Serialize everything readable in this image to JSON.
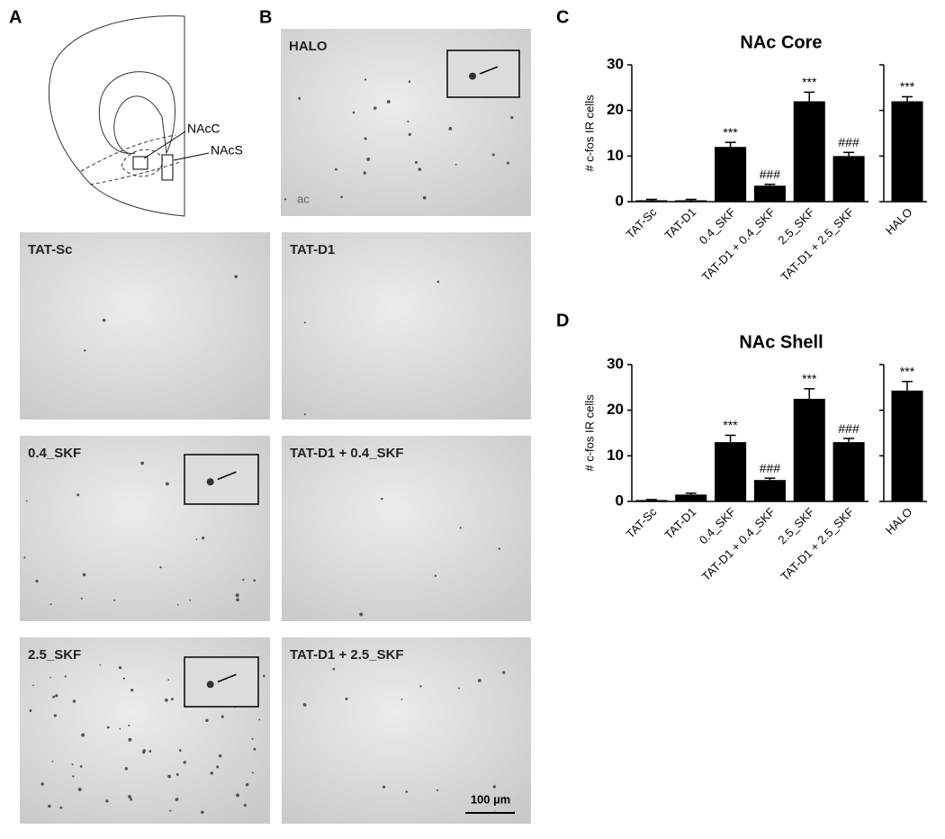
{
  "figure": {
    "letters": [
      "A",
      "B",
      "C",
      "D"
    ],
    "atlas_labels": [
      "NAcC",
      "NAcS"
    ],
    "ac_label": "ac",
    "micrographs": [
      "HALO",
      "TAT-Sc",
      "TAT-D1",
      "0.4_SKF",
      "TAT-D1 + 0.4_SKF",
      "2.5_SKF",
      "TAT-D1 + 2.5_SKF"
    ],
    "scale_bar": "100 µm"
  },
  "chart_data": [
    {
      "type": "bar",
      "title": "NAc Core",
      "y_label": "# c-fos IR cells",
      "categories": [
        "TAT-Sc",
        "TAT-D1",
        "0.4_SKF",
        "TAT-D1 + 0.4_SKF",
        "2.5_SKF",
        "TAT-D1 + 2.5_SKF",
        "HALO"
      ],
      "values": [
        0.3,
        0.3,
        12,
        3.5,
        22,
        10,
        22
      ],
      "errors": [
        0.2,
        0.2,
        1,
        0.3,
        2,
        0.8,
        1
      ],
      "markers": [
        null,
        null,
        "***",
        "###",
        "***",
        "###",
        "***"
      ],
      "color": "#000000",
      "ylim": [
        0,
        30
      ],
      "yticks": [
        0,
        10,
        20,
        30
      ]
    },
    {
      "type": "bar",
      "title": "NAc Shell",
      "y_label": "# c-fos IR cells",
      "categories": [
        "TAT-Sc",
        "TAT-D1",
        "0.4_SKF",
        "TAT-D1 + 0.4_SKF",
        "2.5_SKF",
        "TAT-D1 + 2.5_SKF",
        "HALO"
      ],
      "values": [
        0.3,
        1.5,
        13,
        4.7,
        22.5,
        13,
        24.3
      ],
      "errors": [
        0.1,
        0.3,
        1.5,
        0.4,
        2.2,
        0.8,
        2
      ],
      "markers": [
        null,
        null,
        "***",
        "###",
        "***",
        "###",
        "***"
      ],
      "color": "#000000",
      "ylim": [
        0,
        30
      ],
      "yticks": [
        0,
        10,
        20,
        30
      ]
    }
  ]
}
